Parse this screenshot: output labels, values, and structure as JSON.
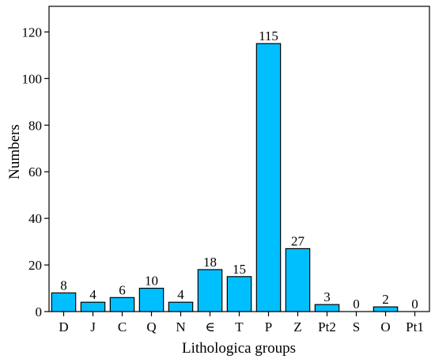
{
  "chart_data": {
    "type": "bar",
    "categories": [
      "D",
      "J",
      "C",
      "Q",
      "N",
      "∈",
      "T",
      "P",
      "Z",
      "Pt2",
      "S",
      "O",
      "Pt1"
    ],
    "values": [
      8,
      4,
      6,
      10,
      4,
      18,
      15,
      115,
      27,
      3,
      0,
      2,
      0
    ],
    "data_labels": [
      "8",
      "4",
      "6",
      "10",
      "4",
      "18",
      "15",
      "115",
      "27",
      "3",
      "0",
      "2",
      "0"
    ],
    "xlabel": "Lithologica groups",
    "ylabel": "Numbers",
    "ylim": [
      0,
      120
    ],
    "yticks": [
      0,
      20,
      40,
      60,
      80,
      100,
      120
    ],
    "ytick_labels": [
      "0",
      "20",
      "40",
      "60",
      "80",
      "100",
      "120"
    ],
    "ymax_visible": 131,
    "grid": false,
    "legend": "none",
    "colors": {
      "bar_fill": "#00BFFF",
      "bar_stroke": "#000000",
      "axis": "#000000"
    }
  }
}
